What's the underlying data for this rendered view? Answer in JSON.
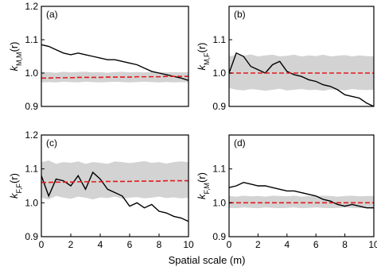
{
  "xlabel": "Spatial scale (m)",
  "chart_data": [
    {
      "type": "line",
      "panel_label": "(a)",
      "ylabel": "k",
      "ylabel_sub": "M,M",
      "ylabel_tail": "(r)",
      "x": [
        0,
        0.5,
        1,
        1.5,
        2,
        2.5,
        3,
        3.5,
        4,
        4.5,
        5,
        5.5,
        6,
        6.5,
        7,
        7.5,
        8,
        8.5,
        9,
        9.5,
        10
      ],
      "xlim": [
        0,
        10
      ],
      "ylim": [
        0.9,
        1.2
      ],
      "yticks": [
        0.9,
        {
          "value": 1,
          "label": "1.0"
        },
        1.1,
        1.2
      ],
      "band": {
        "color": "#d3d3d3",
        "lower": [
          0.972,
          0.973,
          0.972,
          0.974,
          0.973,
          0.972,
          0.974,
          0.973,
          0.972,
          0.973,
          0.974,
          0.973,
          0.972,
          0.973,
          0.974,
          0.973,
          0.972,
          0.973,
          0.972,
          0.973,
          0.972
        ],
        "upper": [
          1.002,
          1.003,
          1.001,
          1.004,
          1.002,
          1.003,
          1.004,
          1.002,
          1.003,
          1.001,
          1.003,
          1.004,
          1.002,
          1.003,
          1.002,
          1.004,
          1.003,
          1.002,
          1.003,
          1.002,
          1.003
        ]
      },
      "series": [
        {
          "color": "#000000",
          "dashed": false,
          "values": [
            1.085,
            1.08,
            1.07,
            1.06,
            1.055,
            1.06,
            1.055,
            1.05,
            1.045,
            1.04,
            1.04,
            1.035,
            1.03,
            1.025,
            1.015,
            1.005,
            1.0,
            0.995,
            0.99,
            0.985,
            0.978
          ]
        },
        {
          "color": "#e31a1c",
          "dashed": true,
          "values": [
            0.985,
            0.985,
            0.986,
            0.986,
            0.986,
            0.987,
            0.987,
            0.987,
            0.987,
            0.988,
            0.988,
            0.988,
            0.988,
            0.989,
            0.989,
            0.989,
            0.989,
            0.99,
            0.99,
            0.99,
            0.99
          ]
        }
      ]
    },
    {
      "type": "line",
      "panel_label": "(b)",
      "ylabel": "k",
      "ylabel_sub": "M,F",
      "ylabel_tail": "(r)",
      "x": [
        0,
        0.5,
        1,
        1.5,
        2,
        2.5,
        3,
        3.5,
        4,
        4.5,
        5,
        5.5,
        6,
        6.5,
        7,
        7.5,
        8,
        8.5,
        9,
        9.5,
        10
      ],
      "xlim": [
        0,
        10
      ],
      "ylim": [
        0.9,
        1.2
      ],
      "yticks": [
        0.9,
        {
          "value": 1,
          "label": "1.0"
        },
        1.1
      ],
      "band": {
        "color": "#d3d3d3",
        "lower": [
          0.955,
          0.95,
          0.948,
          0.952,
          0.95,
          0.947,
          0.95,
          0.953,
          0.948,
          0.95,
          0.952,
          0.949,
          0.95,
          0.947,
          0.951,
          0.95,
          0.948,
          0.952,
          0.95,
          0.949,
          0.95
        ],
        "upper": [
          1.05,
          1.055,
          1.052,
          1.056,
          1.05,
          1.053,
          1.055,
          1.05,
          1.052,
          1.055,
          1.05,
          1.053,
          1.051,
          1.055,
          1.05,
          1.052,
          1.054,
          1.05,
          1.053,
          1.051,
          1.05
        ]
      },
      "series": [
        {
          "color": "#000000",
          "dashed": false,
          "values": [
            1.0,
            1.06,
            1.05,
            1.02,
            1.01,
            1.0,
            1.025,
            1.035,
            1.005,
            0.995,
            0.99,
            0.98,
            0.975,
            0.965,
            0.96,
            0.95,
            0.935,
            0.93,
            0.925,
            0.91,
            0.9
          ]
        },
        {
          "color": "#e31a1c",
          "dashed": true,
          "values": [
            1.0,
            1.0,
            1.0,
            1.0,
            1.0,
            1.0,
            1.0,
            1.0,
            1.0,
            1.0,
            1.0,
            1.0,
            1.0,
            1.0,
            1.0,
            1.0,
            1.0,
            1.0,
            1.0,
            1.0,
            1.0
          ]
        }
      ]
    },
    {
      "type": "line",
      "panel_label": "(c)",
      "ylabel": "k",
      "ylabel_sub": "F,F",
      "ylabel_tail": "(r)",
      "x": [
        0,
        0.5,
        1,
        1.5,
        2,
        2.5,
        3,
        3.5,
        4,
        4.5,
        5,
        5.5,
        6,
        6.5,
        7,
        7.5,
        8,
        8.5,
        9,
        9.5,
        10
      ],
      "xlim": [
        0,
        10
      ],
      "ylim": [
        0.9,
        1.2
      ],
      "yticks": [
        0.9,
        {
          "value": 1,
          "label": "1.0"
        },
        1.1,
        1.2
      ],
      "xticks": [
        0,
        2,
        4,
        6,
        8,
        10
      ],
      "band": {
        "color": "#d3d3d3",
        "lower": [
          1.015,
          1.01,
          1.02,
          1.015,
          1.012,
          1.018,
          1.015,
          1.01,
          1.016,
          1.014,
          1.018,
          1.012,
          1.015,
          1.017,
          1.013,
          1.015,
          1.018,
          1.014,
          1.016,
          1.013,
          1.015
        ],
        "upper": [
          1.12,
          1.125,
          1.115,
          1.12,
          1.118,
          1.122,
          1.115,
          1.12,
          1.118,
          1.115,
          1.122,
          1.12,
          1.117,
          1.12,
          1.123,
          1.118,
          1.12,
          1.116,
          1.12,
          1.122,
          1.12
        ]
      },
      "series": [
        {
          "color": "#000000",
          "dashed": false,
          "values": [
            1.08,
            1.02,
            1.07,
            1.065,
            1.05,
            1.08,
            1.04,
            1.09,
            1.07,
            1.04,
            1.03,
            1.02,
            0.99,
            1.0,
            0.985,
            0.995,
            0.975,
            0.97,
            0.96,
            0.955,
            0.945
          ]
        },
        {
          "color": "#e31a1c",
          "dashed": true,
          "values": [
            1.06,
            1.06,
            1.061,
            1.061,
            1.061,
            1.062,
            1.062,
            1.062,
            1.062,
            1.063,
            1.063,
            1.063,
            1.063,
            1.064,
            1.064,
            1.064,
            1.064,
            1.065,
            1.065,
            1.065,
            1.065
          ]
        }
      ]
    },
    {
      "type": "line",
      "panel_label": "(d)",
      "ylabel": "k",
      "ylabel_sub": "F,M",
      "ylabel_tail": "(r)",
      "x": [
        0,
        0.5,
        1,
        1.5,
        2,
        2.5,
        3,
        3.5,
        4,
        4.5,
        5,
        5.5,
        6,
        6.5,
        7,
        7.5,
        8,
        8.5,
        9,
        9.5,
        10
      ],
      "xlim": [
        0,
        10
      ],
      "ylim": [
        0.9,
        1.2
      ],
      "yticks": [
        0.9,
        {
          "value": 1,
          "label": "1.0"
        },
        1.1
      ],
      "xticks": [
        0,
        2,
        4,
        6,
        8,
        10
      ],
      "band": {
        "color": "#d3d3d3",
        "lower": [
          0.985,
          0.984,
          0.986,
          0.985,
          0.984,
          0.986,
          0.985,
          0.984,
          0.985,
          0.986,
          0.984,
          0.985,
          0.986,
          0.985,
          0.984,
          0.985,
          0.986,
          0.985,
          0.984,
          0.985,
          0.985
        ],
        "upper": [
          1.02,
          1.018,
          1.021,
          1.019,
          1.02,
          1.018,
          1.021,
          1.02,
          1.019,
          1.021,
          1.018,
          1.02,
          1.019,
          1.021,
          1.02,
          1.018,
          1.02,
          1.021,
          1.019,
          1.02,
          1.02
        ]
      },
      "series": [
        {
          "color": "#000000",
          "dashed": false,
          "values": [
            1.045,
            1.05,
            1.06,
            1.055,
            1.05,
            1.05,
            1.045,
            1.04,
            1.035,
            1.035,
            1.03,
            1.025,
            1.02,
            1.01,
            1.005,
            0.995,
            0.99,
            0.995,
            0.99,
            0.985,
            0.985
          ]
        },
        {
          "color": "#e31a1c",
          "dashed": true,
          "values": [
            1.0,
            1.0,
            1.0,
            1.0,
            1.0,
            1.0,
            1.0,
            1.0,
            1.0,
            1.0,
            1.0,
            1.0,
            1.0,
            1.0,
            1.0,
            1.0,
            1.0,
            1.0,
            1.0,
            1.0,
            1.0
          ]
        }
      ]
    }
  ]
}
